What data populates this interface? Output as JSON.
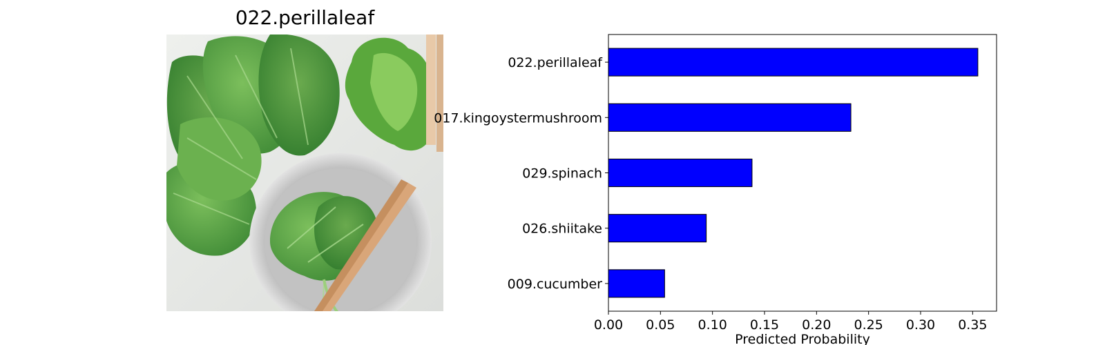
{
  "image_panel": {
    "title": "022.perillaleaf",
    "photo_description_icon": "perilla-leaves-on-plate-photo"
  },
  "chart_data": {
    "type": "bar",
    "orientation": "horizontal",
    "categories": [
      "022.perillaleaf",
      "017.kingoystermushroom",
      "029.spinach",
      "026.shiitake",
      "009.cucumber"
    ],
    "values": [
      0.355,
      0.233,
      0.138,
      0.094,
      0.054
    ],
    "xlabel": "Predicted Probability",
    "ylabel": "",
    "title": "",
    "xlim": [
      0.0,
      0.373
    ],
    "xticks": [
      0.0,
      0.05,
      0.1,
      0.15,
      0.2,
      0.25,
      0.3,
      0.35
    ],
    "xtick_labels": [
      "0.00",
      "0.05",
      "0.10",
      "0.15",
      "0.20",
      "0.25",
      "0.30",
      "0.35"
    ],
    "bar_color": "#0000ff",
    "bar_edge_color": "#000000",
    "grid": false,
    "legend": "none"
  }
}
